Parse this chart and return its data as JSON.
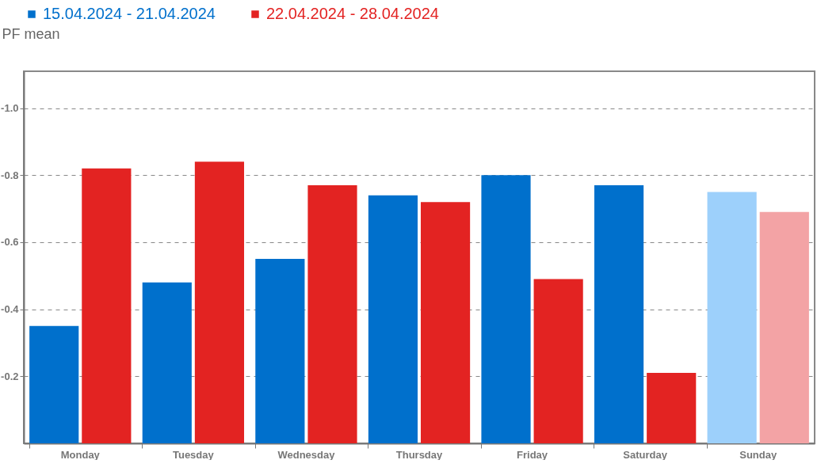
{
  "chart_data": {
    "type": "bar",
    "ylabel": "PF mean",
    "categories": [
      "Monday",
      "Tuesday",
      "Wednesday",
      "Thursday",
      "Friday",
      "Saturday",
      "Sunday"
    ],
    "series": [
      {
        "name": "15.04.2024 - 21.04.2024",
        "color": "#0070cc",
        "colors": [
          "#0070cc",
          "#0070cc",
          "#0070cc",
          "#0070cc",
          "#0070cc",
          "#0070cc",
          "#9dd0fb"
        ],
        "values": [
          -0.35,
          -0.48,
          -0.55,
          -0.74,
          -0.8,
          -0.77,
          -0.75
        ]
      },
      {
        "name": "22.04.2024 - 28.04.2024",
        "color": "#e32322",
        "colors": [
          "#e32322",
          "#e32322",
          "#e32322",
          "#e32322",
          "#e32322",
          "#e32322",
          "#f3a3a5"
        ],
        "values": [
          -0.82,
          -0.84,
          -0.77,
          -0.72,
          -0.49,
          -0.21,
          -0.69
        ]
      }
    ],
    "ylim": [
      0,
      -1.11
    ],
    "yticks": [
      -0.2,
      -0.4,
      -0.6,
      -0.8,
      {
        "value": -1,
        "label": "-1.0"
      }
    ],
    "grid": "y",
    "line_style": "dashed",
    "legend": "top"
  }
}
